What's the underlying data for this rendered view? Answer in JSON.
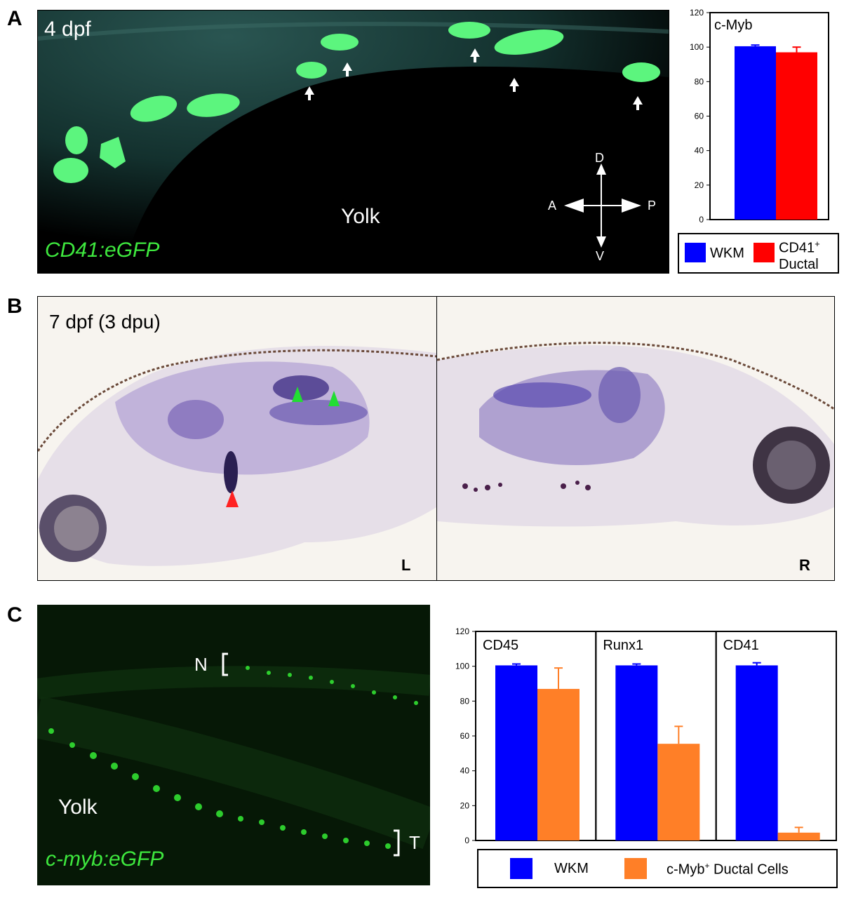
{
  "panels": {
    "A": {
      "letter": "A",
      "stage": "4 dpf",
      "transgene": "CD41:eGFP",
      "yolk": "Yolk",
      "axes": {
        "d": "D",
        "v": "V",
        "a": "A",
        "p": "P"
      },
      "legend": {
        "wkm": "WKM",
        "ductal_line1": "CD41",
        "ductal_sup": "+",
        "ductal_line2": "Ductal"
      }
    },
    "B": {
      "letter": "B",
      "stage": "7 dpf (3 dpu)",
      "left": "L",
      "right": "R"
    },
    "C": {
      "letter": "C",
      "yolk": "Yolk",
      "transgene": "c-myb:eGFP",
      "n_label": "N",
      "t_label": "T",
      "legend": {
        "wkm": "WKM",
        "ductal_pre": "c-Myb",
        "ductal_sup": "+",
        "ductal_post": " Ductal Cells"
      }
    }
  },
  "colors": {
    "wkm": "#0000ff",
    "ductal_a": "#ff0000",
    "ductal_c": "#ff7f27",
    "gfp": "#3ee83e"
  },
  "chart_data": [
    {
      "type": "bar",
      "title": "c-Myb",
      "categories": [
        "WKM",
        "CD41+ Ductal"
      ],
      "values": [
        100.5,
        97
      ],
      "errors": [
        0.7,
        3
      ],
      "ylim": [
        0,
        120
      ],
      "yticks": [
        0,
        20,
        40,
        60,
        80,
        100,
        120
      ]
    },
    {
      "type": "bar",
      "panels": [
        "CD45",
        "Runx1",
        "CD41"
      ],
      "series": [
        {
          "name": "WKM",
          "values": [
            100.5,
            100.5,
            100.5
          ],
          "errors": [
            0.8,
            0.8,
            1.5
          ]
        },
        {
          "name": "c-Myb+ Ductal Cells",
          "values": [
            87,
            55.5,
            4.5
          ],
          "errors": [
            12,
            10,
            3
          ]
        }
      ],
      "ylim": [
        0,
        120
      ],
      "yticks": [
        0,
        20,
        40,
        60,
        80,
        100,
        120
      ]
    }
  ]
}
